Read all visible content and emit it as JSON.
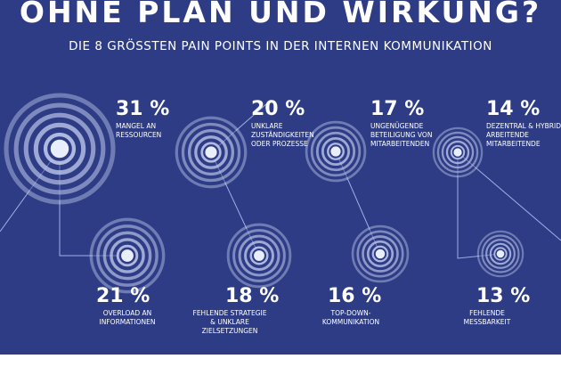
{
  "header": {
    "title": "OHNE PLAN UND WIRKUNG?",
    "subtitle": "DIE 8 GRÖSSTEN PAIN POINTS IN DER INTERNEN KOMMUNIKATION"
  },
  "colors": {
    "background": "#2d3c84",
    "ring": "#bfc8ec",
    "line": "#9fb0e8",
    "text": "#ffffff"
  },
  "chart_data": {
    "type": "bubble",
    "title": "OHNE PLAN UND WIRKUNG?",
    "subtitle": "DIE 8 GRÖSSTEN PAIN POINTS IN DER INTERNEN KOMMUNIKATION",
    "unit": "%",
    "items": [
      {
        "value": 31,
        "value_label": "31 %",
        "label": "MANGEL AN\nRESSOURCEN"
      },
      {
        "value": 21,
        "value_label": "21 %",
        "label": "OVERLOAD AN\nINFORMATIONEN"
      },
      {
        "value": 20,
        "value_label": "20 %",
        "label": "UNKLARE\nZUSTÄNDIGKEITEN\nODER PROZESSE"
      },
      {
        "value": 18,
        "value_label": "18 %",
        "label": "FEHLENDE STRATEGIE\n& UNKLARE\nZIELSETZUNGEN"
      },
      {
        "value": 17,
        "value_label": "17 %",
        "label": "UNGENÜGENDE\nBETEILIGUNG VON\nMITARBEITENDEN"
      },
      {
        "value": 16,
        "value_label": "16 %",
        "label": "TOP-DOWN-\nKOMMUNIKATION"
      },
      {
        "value": 14,
        "value_label": "14 %",
        "label": "DEZENTRAL & HYBRID\nARBEITENDE\nMITARBEITENDE"
      },
      {
        "value": 13,
        "value_label": "13 %",
        "label": "FEHLENDE\nMESSBARKEIT"
      }
    ]
  }
}
